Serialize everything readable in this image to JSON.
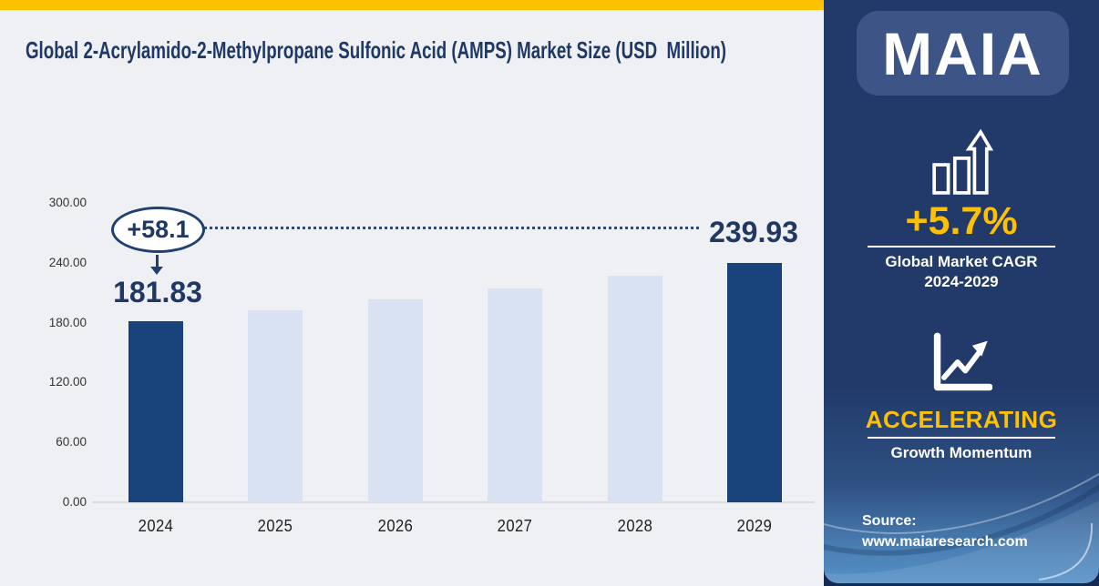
{
  "chart_data": {
    "type": "bar",
    "title": "Global 2-Acrylamido-2-Methylpropane Sulfonic Acid (AMPS) Market Size (USD  Million)",
    "categories": [
      "2024",
      "2025",
      "2026",
      "2027",
      "2028",
      "2029"
    ],
    "values": [
      181.83,
      192.19,
      203.15,
      214.73,
      226.97,
      239.93
    ],
    "xlabel": "",
    "ylabel": "",
    "ylim": [
      0,
      300
    ],
    "ytick_labels": [
      "300.00",
      "240.00",
      "180.00",
      "120.00",
      "60.00",
      "0.00"
    ],
    "grid": false,
    "legend": false,
    "highlight_indices": [
      0,
      5
    ],
    "data_labels": {
      "first": "181.83",
      "last": "239.93",
      "delta": "+58.1"
    },
    "colors": {
      "highlight_bar": "#17427A",
      "base_bar": "#D9E2F3",
      "annotation_text": "#1F3864",
      "accent_gold": "#FFC000"
    }
  },
  "sidebar": {
    "logo": "MAIA",
    "cagr_value": "+5.7%",
    "cagr_label_line1": "Global Market CAGR",
    "cagr_label_line2": "2024-2029",
    "momentum_value": "ACCELERATING",
    "momentum_label": "Growth Momentum",
    "source_label": "Source:",
    "source_url": "www.maiaresearch.com"
  }
}
